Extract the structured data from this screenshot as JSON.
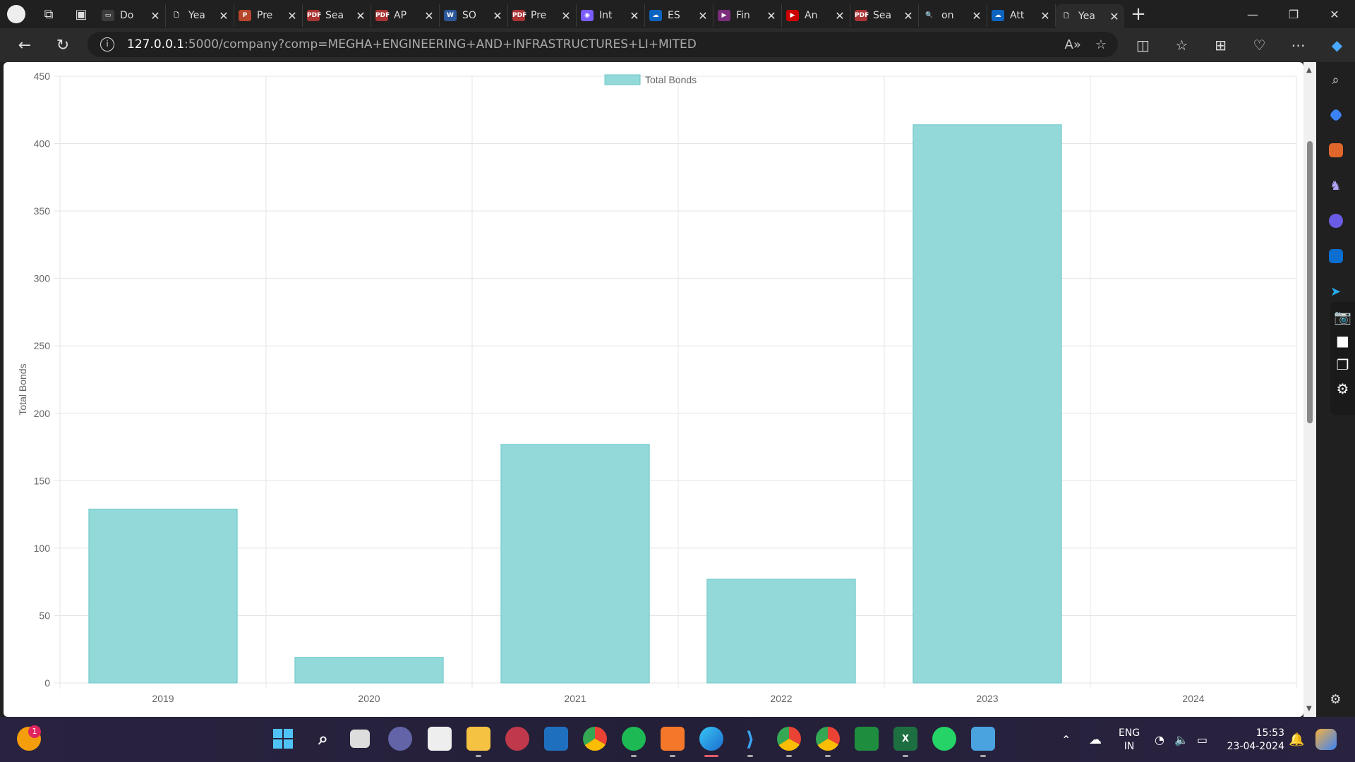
{
  "tabs": [
    {
      "label": "Do",
      "color": "#3c3c3c",
      "glyph": "▭"
    },
    {
      "label": "Yea",
      "color": "transparent",
      "glyph": "🗋"
    },
    {
      "label": "Pre",
      "color": "#b8462b",
      "glyph": "P"
    },
    {
      "label": "Sea",
      "color": "#a33",
      "glyph": "PDF"
    },
    {
      "label": "AP",
      "color": "#a33",
      "glyph": "PDF"
    },
    {
      "label": "SO",
      "color": "#2b579a",
      "glyph": "W"
    },
    {
      "label": "Pre",
      "color": "#a33",
      "glyph": "PDF"
    },
    {
      "label": "Int",
      "color": "#7a5cff",
      "glyph": "◉"
    },
    {
      "label": "ES",
      "color": "#0b64c0",
      "glyph": "☁"
    },
    {
      "label": "Fin",
      "color": "#7b2d7b",
      "glyph": "▶"
    },
    {
      "label": "An",
      "color": "#c00",
      "glyph": "▶"
    },
    {
      "label": "Sea",
      "color": "#a33",
      "glyph": "PDF"
    },
    {
      "label": "on",
      "color": "transparent",
      "glyph": "🔍"
    },
    {
      "label": "Att",
      "color": "#0b64c0",
      "glyph": "☁"
    },
    {
      "label": "Yea",
      "color": "transparent",
      "glyph": "🗋",
      "active": true
    }
  ],
  "address": {
    "host": "127.0.0.1",
    "path": ":5000/company?comp=MEGHA+ENGINEERING+AND+INFRASTRUCTURES+LI+MITED"
  },
  "chart_data": {
    "type": "bar",
    "categories": [
      "2019",
      "2020",
      "2021",
      "2022",
      "2023",
      "2024"
    ],
    "series": [
      {
        "name": "Total Bonds",
        "values": [
          129,
          19,
          177,
          77,
          414,
          0
        ],
        "color": "#93d9d9",
        "border": "#6cc7c7"
      }
    ],
    "ylabel": "Total Bonds",
    "xlabel": "",
    "ylim": [
      0,
      450
    ],
    "yticks": [
      0,
      50,
      100,
      150,
      200,
      250,
      300,
      350,
      400,
      450
    ],
    "grid": true,
    "legend": "top-center"
  },
  "taskbar": {
    "lang_top": "ENG",
    "lang_bottom": "IN",
    "time": "15:53",
    "date": "23-04-2024",
    "notification_count": "1"
  }
}
